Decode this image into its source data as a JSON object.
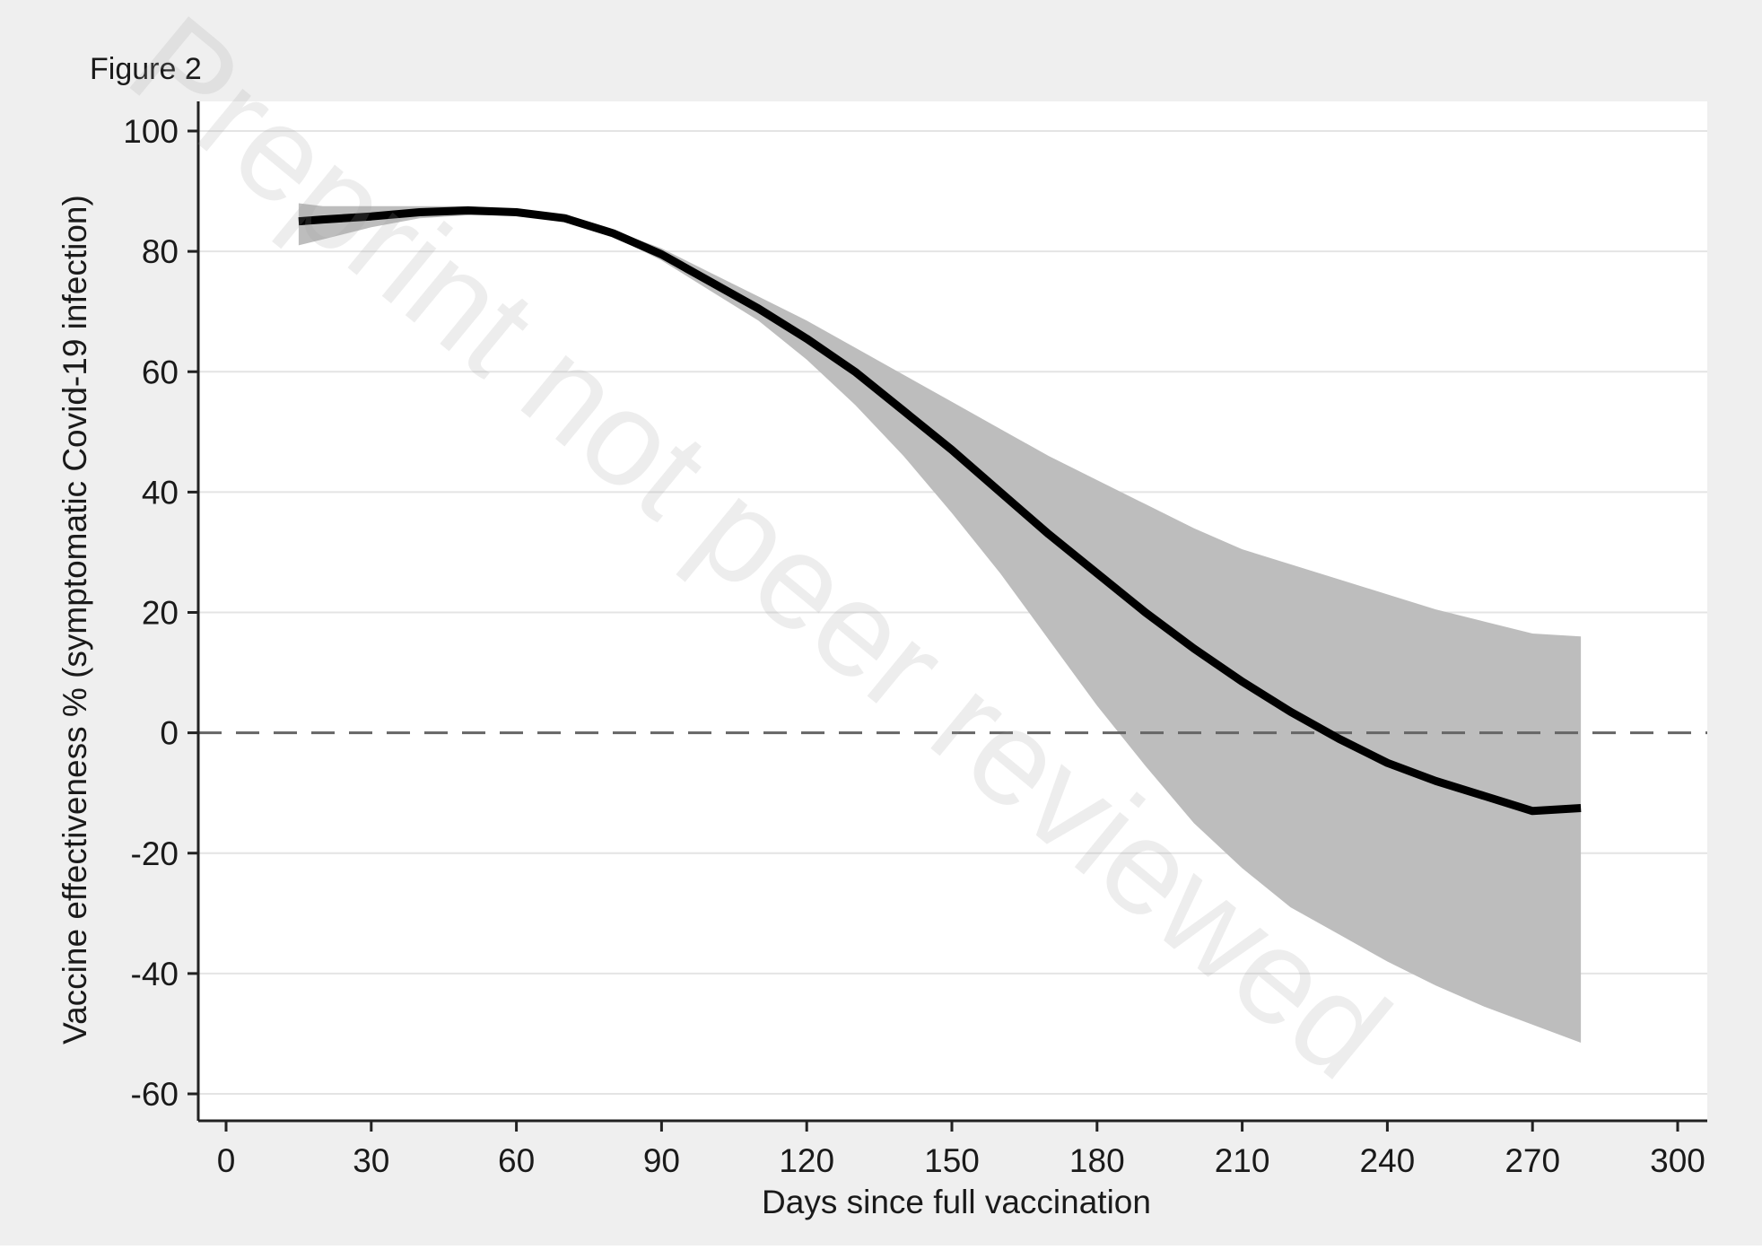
{
  "figure_label": "Figure 2",
  "watermark": "Preprint not peer reviewed",
  "colors": {
    "outer_background": "#efefef",
    "plot_background": "#ffffff",
    "gridline": "#e4e4e4",
    "ci_band": "#bdbdbd",
    "line": "#000000",
    "reference_line": "#666666"
  },
  "chart_data": {
    "type": "line",
    "title": "",
    "xlabel": "Days since full vaccination",
    "ylabel": "Vaccine effectiveness % (symptomatic Covid-19 infection)",
    "xlim": [
      -5,
      305
    ],
    "ylim": [
      -65,
      105
    ],
    "xticks": [
      0,
      30,
      60,
      90,
      120,
      150,
      180,
      210,
      240,
      270,
      300
    ],
    "yticks": [
      100,
      80,
      60,
      40,
      20,
      0,
      -20,
      -40,
      -60
    ],
    "grid": true,
    "reference_line": {
      "y": 0,
      "style": "dashed"
    },
    "series": [
      {
        "x": [
          15,
          20,
          30,
          40,
          50,
          60,
          70,
          80,
          90,
          100,
          110,
          120,
          130,
          140,
          150,
          160,
          170,
          180,
          190,
          200,
          210,
          220,
          230,
          240,
          250,
          260,
          270,
          280
        ],
        "y": [
          85,
          85.3,
          85.8,
          86.5,
          86.8,
          86.5,
          85.5,
          83,
          79.5,
          75,
          70.5,
          65.5,
          60,
          53.5,
          47,
          40,
          33,
          26.5,
          20,
          14,
          8.5,
          3.5,
          -1,
          -5,
          -8,
          -10.5,
          -13,
          -12.5
        ],
        "ci_lower": [
          81,
          82,
          84,
          85.5,
          86,
          86,
          85,
          82.5,
          78.5,
          73.5,
          68.5,
          62,
          54.5,
          46,
          36.5,
          26.5,
          15.5,
          4.5,
          -5.5,
          -15,
          -22.5,
          -29,
          -33.5,
          -38,
          -42,
          -45.5,
          -48.5,
          -51.5
        ],
        "ci_upper": [
          88,
          87.5,
          87.5,
          87.5,
          87.5,
          87,
          86,
          83.5,
          80.5,
          76.5,
          72.5,
          68.5,
          64,
          59.5,
          55,
          50.5,
          46,
          42,
          38,
          34,
          30.5,
          28,
          25.5,
          23,
          20.5,
          18.5,
          16.5,
          16
        ]
      }
    ]
  }
}
